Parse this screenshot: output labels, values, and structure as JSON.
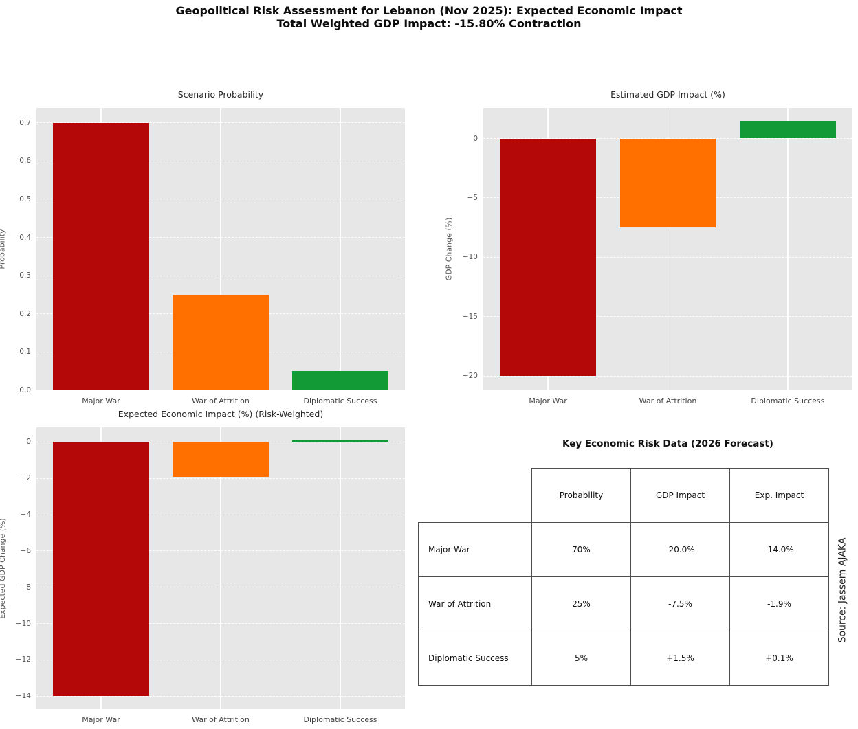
{
  "figure": {
    "title_line1": "Geopolitical Risk Assessment for Lebanon (Nov 2025): Expected Economic Impact",
    "title_line2": "Total Weighted GDP Impact: -15.80% Contraction"
  },
  "palette": {
    "major_war": "#b40808",
    "war_of_attrition": "#ff7000",
    "diplomatic_success": "#129a37",
    "plot_background": "#e7e7e7",
    "gridline": "#ffffff"
  },
  "chart_data": [
    {
      "type": "bar",
      "title": "Scenario Probability",
      "xlabel": "",
      "ylabel": "Probability",
      "categories": [
        "Major War",
        "War of Attrition",
        "Diplomatic Success"
      ],
      "values": [
        0.7,
        0.25,
        0.05
      ],
      "bar_colors": [
        "#b40808",
        "#ff7000",
        "#129a37"
      ],
      "ylim": [
        0,
        0.739
      ],
      "grid": true,
      "legend": false,
      "yticks": [
        {
          "v": 0.0,
          "label": "0.0"
        },
        {
          "v": 0.1,
          "label": "0.1"
        },
        {
          "v": 0.2,
          "label": "0.2"
        },
        {
          "v": 0.3,
          "label": "0.3"
        },
        {
          "v": 0.4,
          "label": "0.4"
        },
        {
          "v": 0.5,
          "label": "0.5"
        },
        {
          "v": 0.6,
          "label": "0.6"
        },
        {
          "v": 0.7,
          "label": "0.7"
        }
      ]
    },
    {
      "type": "bar",
      "title": "Estimated GDP Impact (%)",
      "xlabel": "",
      "ylabel": "GDP Change (%)",
      "categories": [
        "Major War",
        "War of Attrition",
        "Diplomatic Success"
      ],
      "values": [
        -20.0,
        -7.5,
        1.5
      ],
      "bar_colors": [
        "#b40808",
        "#ff7000",
        "#129a37"
      ],
      "ylim": [
        -21.2,
        2.575
      ],
      "grid": true,
      "legend": false,
      "yticks": [
        {
          "v": 0,
          "label": "0"
        },
        {
          "v": -5,
          "label": "−5"
        },
        {
          "v": -10,
          "label": "−10"
        },
        {
          "v": -15,
          "label": "−15"
        },
        {
          "v": -20,
          "label": "−20"
        }
      ]
    },
    {
      "type": "bar",
      "title": "Expected Economic Impact (%) (Risk-Weighted)",
      "xlabel": "",
      "ylabel": "Expected GDP Change (%)",
      "categories": [
        "Major War",
        "War of Attrition",
        "Diplomatic Success"
      ],
      "values": [
        -14.0,
        -1.9,
        0.1
      ],
      "bar_colors": [
        "#b40808",
        "#ff7000",
        "#129a37"
      ],
      "ylim": [
        -14.71,
        0.81
      ],
      "grid": true,
      "legend": false,
      "yticks": [
        {
          "v": 0,
          "label": "0"
        },
        {
          "v": -2,
          "label": "−2"
        },
        {
          "v": -4,
          "label": "−4"
        },
        {
          "v": -6,
          "label": "−6"
        },
        {
          "v": -8,
          "label": "−8"
        },
        {
          "v": -10,
          "label": "−10"
        },
        {
          "v": -12,
          "label": "−12"
        },
        {
          "v": -14,
          "label": "−14"
        }
      ]
    },
    {
      "type": "table",
      "title": "Key Economic Risk Data (2026 Forecast)",
      "columns": [
        "Probability",
        "GDP Impact",
        "Exp. Impact"
      ],
      "rows": [
        {
          "label": "Major War",
          "values": [
            "70%",
            "-20.0%",
            "-14.0%"
          ]
        },
        {
          "label": "War of Attrition",
          "values": [
            "25%",
            "-7.5%",
            "-1.9%"
          ]
        },
        {
          "label": "Diplomatic Success",
          "values": [
            "5%",
            "+1.5%",
            "+0.1%"
          ]
        }
      ]
    }
  ],
  "source_note": "Source: Jassem AJAKA"
}
